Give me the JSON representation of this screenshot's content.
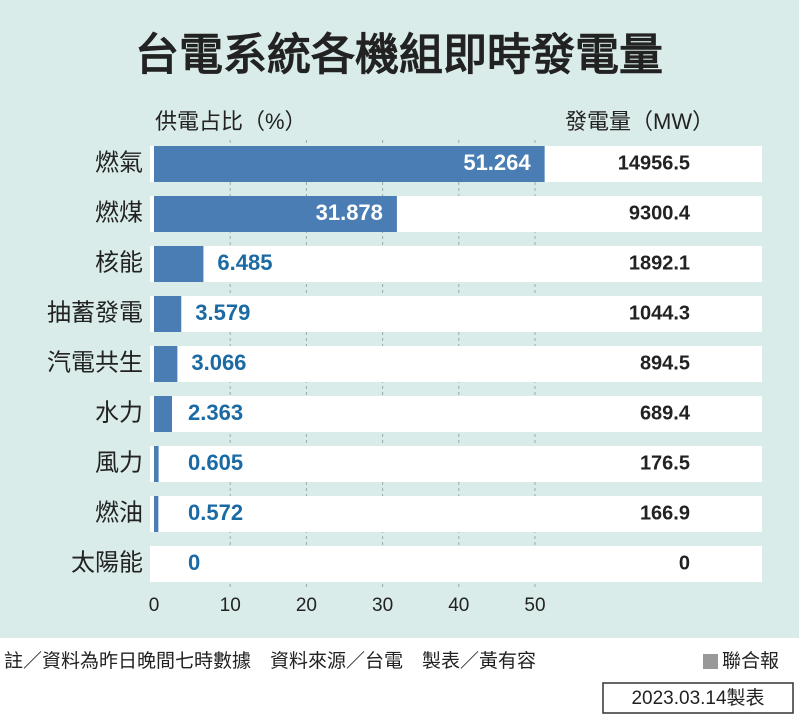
{
  "chart_data": {
    "type": "bar",
    "orientation": "horizontal",
    "title": "台電系統各機組即時發電量",
    "x_label": "供電占比（%）",
    "categories": [
      "燃氣",
      "燃煤",
      "核能",
      "抽蓄發電",
      "汽電共生",
      "水力",
      "風力",
      "燃油",
      "太陽能"
    ],
    "values": [
      51.264,
      31.878,
      6.485,
      3.579,
      3.066,
      2.363,
      0.605,
      0.572,
      0
    ],
    "color": "#4a7db3",
    "label_color": "#1b6aa3",
    "xlim": [
      0,
      55
    ],
    "xticks": [
      0,
      10,
      20,
      30,
      40,
      50
    ],
    "grid": true,
    "mw_label": "發電量（MW）",
    "mw_values": [
      14956.5,
      9300.4,
      1892.1,
      1044.3,
      894.5,
      689.4,
      176.5,
      166.9,
      0
    ]
  },
  "footer": {
    "note": "註／資料為昨日晚間七時數據　資料來源／台電　製表／黃有容",
    "publisher": "聯合報",
    "date": "2023.03.14製表"
  }
}
